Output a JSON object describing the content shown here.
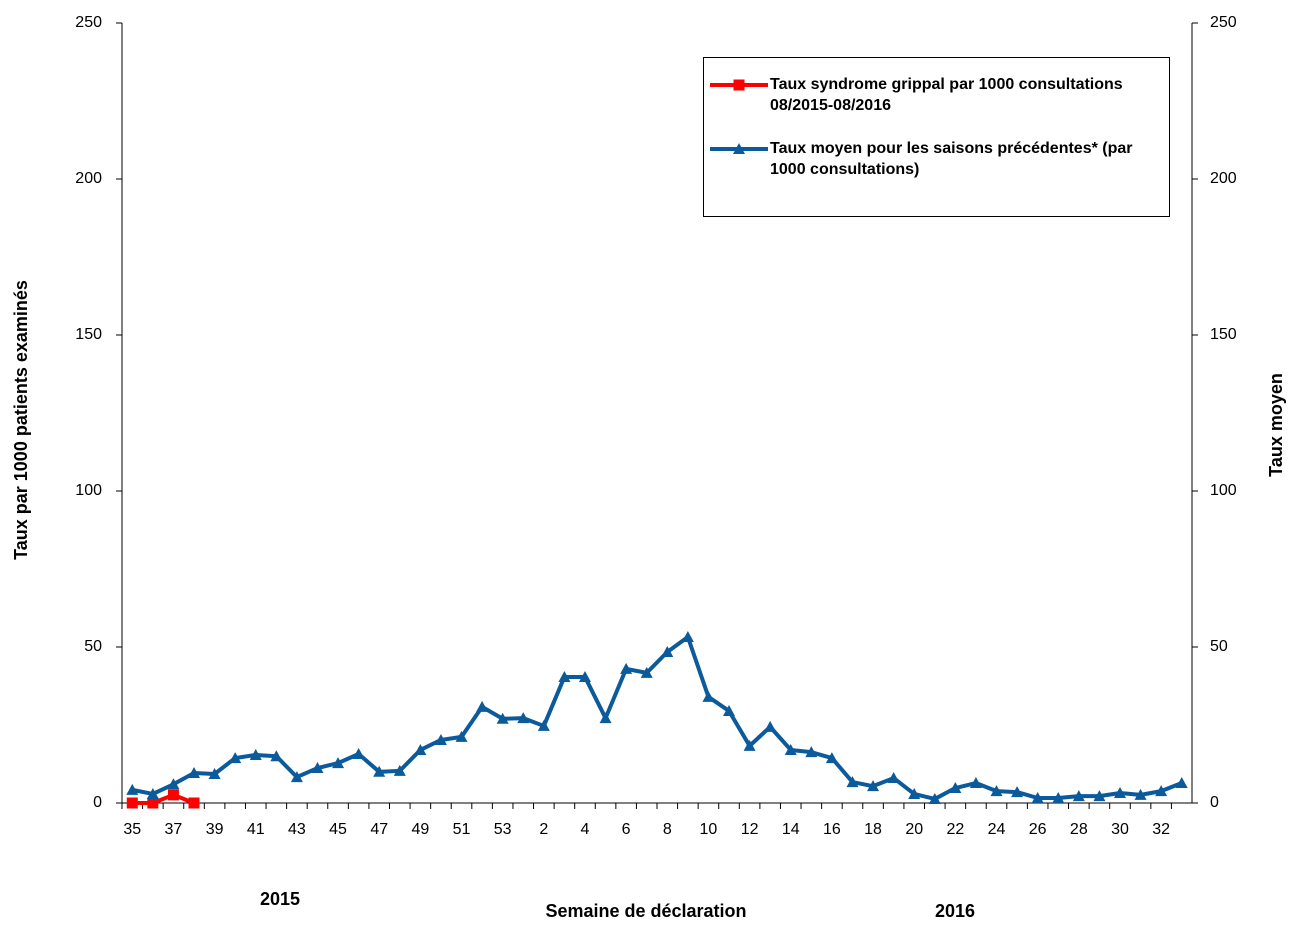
{
  "chart_data": {
    "type": "line",
    "y_label": "Taux par 1000 patients examinés",
    "y2_label": "Taux moyen",
    "x_label": "Semaine de déclaration",
    "annotations": [
      "2015",
      "2016"
    ],
    "categories": [
      "35",
      null,
      "37",
      null,
      "39",
      null,
      "41",
      null,
      "43",
      null,
      "45",
      null,
      "47",
      null,
      "49",
      null,
      "51",
      null,
      "53",
      null,
      "2",
      null,
      "4",
      null,
      "6",
      null,
      "8",
      null,
      "10",
      null,
      "12",
      null,
      "14",
      null,
      "16",
      null,
      "18",
      null,
      "20",
      null,
      "22",
      null,
      "24",
      null,
      "26",
      null,
      "28",
      null,
      "30",
      null,
      "32",
      null
    ],
    "series": [
      {
        "name": "Taux syndrome grippal par 1000 consultations 08/2015-08/2016",
        "color": "#ff0000",
        "marker": "square",
        "values": [
          0,
          0,
          2.6,
          0,
          null,
          null,
          null,
          null,
          null,
          null,
          null,
          null,
          null,
          null,
          null,
          null,
          null,
          null,
          null,
          null,
          null,
          null,
          null,
          null,
          null,
          null,
          null,
          null,
          null,
          null,
          null,
          null,
          null,
          null,
          null,
          null,
          null,
          null,
          null,
          null,
          null,
          null,
          null,
          null,
          null,
          null,
          null,
          null,
          null,
          null,
          null,
          null
        ]
      },
      {
        "name": "Taux moyen pour les saisons précédentes* (par 1000 consultations)",
        "color": "#0a5a9c",
        "marker": "triangle",
        "axis": "y2",
        "values": [
          4.2,
          2.9,
          6,
          9.6,
          9.3,
          14.4,
          15.4,
          15,
          8.3,
          11.2,
          12.8,
          15.7,
          10,
          10.3,
          17,
          20.2,
          21.2,
          30.8,
          27,
          27.2,
          24.7,
          40.4,
          40.4,
          27.2,
          43,
          41.7,
          48.4,
          53.2,
          34,
          29.5,
          18.3,
          24.4,
          17,
          16.3,
          14.4,
          6.7,
          5.4,
          8,
          2.9,
          1.3,
          4.8,
          6.4,
          3.8,
          3.5,
          1.6,
          1.6,
          2.2,
          2.2,
          3.2,
          2.6,
          3.8,
          6.4
        ]
      }
    ],
    "ylim": [
      0,
      250
    ],
    "yticks": [
      0,
      50,
      100,
      150,
      200,
      250
    ],
    "y2lim": [
      0,
      250
    ],
    "y2ticks": [
      0,
      50,
      100,
      150,
      200,
      250
    ],
    "grid": false
  }
}
